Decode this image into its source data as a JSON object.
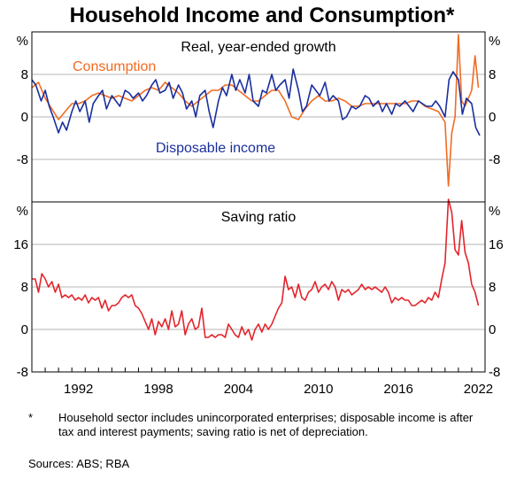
{
  "title": "Household Income and Consumption*",
  "footnote": {
    "marker": "*",
    "text": "Household sector includes unincorporated enterprises; disposable income is after tax and interest payments; saving ratio is net of depreciation.",
    "sources": "Sources: ABS; RBA"
  },
  "colors": {
    "consumption": "#f26b21",
    "income": "#1a2f9e",
    "saving": "#e3242b",
    "grid": "#b4b4b4"
  },
  "chart_data": [
    {
      "type": "line",
      "title": "Real, year-ended growth",
      "unit": "%",
      "ylim": [
        -16,
        16
      ],
      "ticks": [
        -8,
        0,
        8
      ],
      "grid": true,
      "series": [
        {
          "name": "Consumption",
          "color": "#f26b21",
          "x": [
            1989.0,
            1989.5,
            1990.0,
            1990.5,
            1991.0,
            1991.5,
            1992.0,
            1992.5,
            1993.0,
            1993.5,
            1994.0,
            1994.5,
            1995.0,
            1995.5,
            1996.0,
            1996.5,
            1997.0,
            1997.5,
            1998.0,
            1998.5,
            1999.0,
            1999.5,
            2000.0,
            2000.5,
            2001.0,
            2001.5,
            2002.0,
            2002.5,
            2003.0,
            2003.5,
            2004.0,
            2004.5,
            2005.0,
            2005.5,
            2006.0,
            2006.5,
            2007.0,
            2007.5,
            2008.0,
            2008.5,
            2009.0,
            2009.5,
            2010.0,
            2010.5,
            2011.0,
            2011.5,
            2012.0,
            2012.5,
            2013.0,
            2013.5,
            2014.0,
            2014.5,
            2015.0,
            2015.5,
            2016.0,
            2016.5,
            2017.0,
            2017.5,
            2018.0,
            2018.5,
            2019.0,
            2019.5,
            2020.0,
            2020.25,
            2020.5,
            2020.75,
            2021.0,
            2021.25,
            2021.5,
            2021.75,
            2022.0,
            2022.25,
            2022.5
          ],
          "y": [
            5.5,
            6.5,
            3.5,
            1.5,
            -0.5,
            1.0,
            2.5,
            2.5,
            3.0,
            4.0,
            4.5,
            4.0,
            3.5,
            4.0,
            3.5,
            3.0,
            4.0,
            5.0,
            5.5,
            5.0,
            6.5,
            5.5,
            4.5,
            3.0,
            2.0,
            3.0,
            4.0,
            5.0,
            5.0,
            6.0,
            6.0,
            5.0,
            4.0,
            3.0,
            3.0,
            4.0,
            5.0,
            5.0,
            3.0,
            0.0,
            -0.5,
            1.5,
            3.0,
            4.0,
            3.0,
            3.0,
            3.5,
            3.0,
            2.0,
            2.0,
            2.5,
            2.5,
            2.5,
            2.5,
            2.5,
            2.5,
            2.5,
            3.0,
            3.0,
            2.0,
            1.5,
            1.0,
            -1.0,
            -13.0,
            -3.0,
            0.0,
            15.5,
            3.0,
            2.0,
            3.5,
            5.0,
            11.5,
            5.5
          ]
        },
        {
          "name": "Disposable income",
          "color": "#1a2f9e",
          "x": [
            1989.0,
            1989.3,
            1989.7,
            1990.0,
            1990.3,
            1990.6,
            1991.0,
            1991.3,
            1991.6,
            1992.0,
            1992.3,
            1992.6,
            1993.0,
            1993.3,
            1993.6,
            1994.0,
            1994.3,
            1994.6,
            1995.0,
            1995.3,
            1995.6,
            1996.0,
            1996.3,
            1996.6,
            1997.0,
            1997.3,
            1997.6,
            1998.0,
            1998.3,
            1998.6,
            1999.0,
            1999.3,
            1999.6,
            2000.0,
            2000.3,
            2000.6,
            2001.0,
            2001.3,
            2001.6,
            2002.0,
            2002.3,
            2002.6,
            2003.0,
            2003.3,
            2003.6,
            2004.0,
            2004.3,
            2004.6,
            2005.0,
            2005.3,
            2005.6,
            2006.0,
            2006.3,
            2006.6,
            2007.0,
            2007.3,
            2007.6,
            2008.0,
            2008.3,
            2008.6,
            2009.0,
            2009.3,
            2009.6,
            2010.0,
            2010.3,
            2010.6,
            2011.0,
            2011.3,
            2011.6,
            2012.0,
            2012.3,
            2012.6,
            2013.0,
            2013.3,
            2013.6,
            2014.0,
            2014.3,
            2014.6,
            2015.0,
            2015.3,
            2015.6,
            2016.0,
            2016.3,
            2016.6,
            2017.0,
            2017.3,
            2017.6,
            2018.0,
            2018.3,
            2018.6,
            2019.0,
            2019.3,
            2019.6,
            2020.0,
            2020.3,
            2020.6,
            2021.0,
            2021.3,
            2021.6,
            2022.0,
            2022.3,
            2022.6
          ],
          "y": [
            7.0,
            6.0,
            3.0,
            5.0,
            2.0,
            0.0,
            -3.0,
            -1.0,
            -2.5,
            1.0,
            3.0,
            1.0,
            3.0,
            -1.0,
            2.5,
            4.0,
            5.0,
            1.5,
            4.0,
            3.0,
            2.0,
            5.0,
            4.5,
            3.5,
            4.5,
            3.0,
            4.0,
            6.0,
            7.0,
            4.5,
            5.0,
            6.5,
            3.5,
            6.0,
            4.5,
            1.5,
            3.0,
            0.0,
            4.0,
            5.0,
            1.0,
            -2.0,
            3.0,
            5.5,
            4.0,
            8.0,
            5.0,
            7.0,
            4.5,
            8.0,
            3.0,
            2.0,
            5.0,
            4.5,
            8.0,
            5.0,
            6.0,
            7.0,
            3.5,
            9.0,
            5.0,
            1.0,
            2.0,
            6.0,
            5.0,
            4.0,
            6.5,
            3.0,
            4.0,
            3.0,
            -0.5,
            0.0,
            2.0,
            1.5,
            2.0,
            4.0,
            3.5,
            2.0,
            3.0,
            1.0,
            2.5,
            0.5,
            2.5,
            2.0,
            3.0,
            2.0,
            1.0,
            3.0,
            2.5,
            2.0,
            2.0,
            3.0,
            2.0,
            0.0,
            7.0,
            8.5,
            7.0,
            0.5,
            3.5,
            2.5,
            -2.0,
            -3.5
          ]
        }
      ],
      "labels": [
        "Consumption",
        "Disposable income"
      ]
    },
    {
      "type": "line",
      "title": "Saving ratio",
      "unit": "%",
      "ylim": [
        -8,
        24
      ],
      "ticks": [
        -8,
        0,
        8,
        16
      ],
      "grid": true,
      "series": [
        {
          "name": "",
          "color": "#e3242b",
          "x": [
            1989.0,
            1989.25,
            1989.5,
            1989.75,
            1990.0,
            1990.25,
            1990.5,
            1990.75,
            1991.0,
            1991.25,
            1991.5,
            1991.75,
            1992.0,
            1992.25,
            1992.5,
            1992.75,
            1993.0,
            1993.25,
            1993.5,
            1993.75,
            1994.0,
            1994.25,
            1994.5,
            1994.75,
            1995.0,
            1995.25,
            1995.5,
            1995.75,
            1996.0,
            1996.25,
            1996.5,
            1996.75,
            1997.0,
            1997.25,
            1997.5,
            1997.75,
            1998.0,
            1998.25,
            1998.5,
            1998.75,
            1999.0,
            1999.25,
            1999.5,
            1999.75,
            2000.0,
            2000.25,
            2000.5,
            2000.75,
            2001.0,
            2001.25,
            2001.5,
            2001.75,
            2002.0,
            2002.25,
            2002.5,
            2002.75,
            2003.0,
            2003.25,
            2003.5,
            2003.75,
            2004.0,
            2004.25,
            2004.5,
            2004.75,
            2005.0,
            2005.25,
            2005.5,
            2005.75,
            2006.0,
            2006.25,
            2006.5,
            2006.75,
            2007.0,
            2007.25,
            2007.5,
            2007.75,
            2008.0,
            2008.25,
            2008.5,
            2008.75,
            2009.0,
            2009.25,
            2009.5,
            2009.75,
            2010.0,
            2010.25,
            2010.5,
            2010.75,
            2011.0,
            2011.25,
            2011.5,
            2011.75,
            2012.0,
            2012.25,
            2012.5,
            2012.75,
            2013.0,
            2013.25,
            2013.5,
            2013.75,
            2014.0,
            2014.25,
            2014.5,
            2014.75,
            2015.0,
            2015.25,
            2015.5,
            2015.75,
            2016.0,
            2016.25,
            2016.5,
            2016.75,
            2017.0,
            2017.25,
            2017.5,
            2017.75,
            2018.0,
            2018.25,
            2018.5,
            2018.75,
            2019.0,
            2019.25,
            2019.5,
            2019.75,
            2020.0,
            2020.25,
            2020.5,
            2020.75,
            2021.0,
            2021.25,
            2021.5,
            2021.75,
            2022.0,
            2022.25,
            2022.5
          ],
          "y": [
            9.5,
            9.5,
            7.0,
            10.5,
            9.5,
            8.0,
            9.0,
            7.0,
            8.5,
            6.0,
            6.5,
            6.0,
            6.5,
            5.5,
            6.0,
            5.5,
            6.5,
            5.0,
            6.0,
            5.5,
            6.0,
            4.0,
            5.5,
            3.5,
            4.5,
            4.5,
            5.0,
            6.0,
            6.5,
            6.0,
            6.5,
            4.5,
            4.0,
            3.0,
            1.5,
            0.0,
            2.0,
            -1.0,
            1.5,
            0.5,
            2.0,
            0.0,
            3.5,
            0.5,
            1.0,
            3.5,
            -1.0,
            1.0,
            2.0,
            0.0,
            0.5,
            4.0,
            -1.5,
            -1.5,
            -1.0,
            -1.5,
            -1.0,
            -1.0,
            -1.5,
            1.0,
            0.0,
            -1.0,
            -1.5,
            0.5,
            -1.0,
            0.0,
            -2.0,
            0.0,
            1.0,
            -0.5,
            1.0,
            0.0,
            1.0,
            2.5,
            4.0,
            5.0,
            10.0,
            7.5,
            8.0,
            6.0,
            8.5,
            6.0,
            5.5,
            7.0,
            7.5,
            9.0,
            7.0,
            8.0,
            8.5,
            7.5,
            9.0,
            8.0,
            5.5,
            7.5,
            7.0,
            7.5,
            6.5,
            7.0,
            7.5,
            8.5,
            7.5,
            8.0,
            7.5,
            8.0,
            7.5,
            7.0,
            8.0,
            7.0,
            5.0,
            6.0,
            5.5,
            6.0,
            5.5,
            5.5,
            4.5,
            4.5,
            5.0,
            5.5,
            5.0,
            6.0,
            5.5,
            7.0,
            6.0,
            9.5,
            12.5,
            24.5,
            22.0,
            15.0,
            14.0,
            20.5,
            14.5,
            12.5,
            8.5,
            7.0,
            4.5
          ]
        }
      ]
    }
  ],
  "x_axis": {
    "tick_labels": [
      "1992",
      "1998",
      "2004",
      "2010",
      "2016",
      "2022"
    ]
  }
}
